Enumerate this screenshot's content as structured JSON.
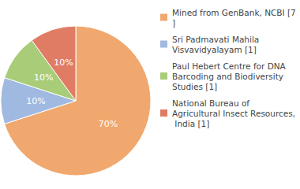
{
  "chart_data": {
    "type": "pie",
    "categories": [
      "Mined from GenBank, NCBI [7]",
      "Sri Padmavati Mahila Visvavidyalayam [1]",
      "Paul Hebert Centre for DNA Barcoding and Biodiversity Studies [1]",
      "National Bureau of Agricultural Insect Resources, India [1]"
    ],
    "values": [
      70,
      10,
      10,
      10
    ],
    "value_labels": [
      "70%",
      "10%",
      "10%",
      "10%"
    ],
    "colors": [
      "#f0a86e",
      "#a0b9e0",
      "#a8cc78",
      "#e07c64"
    ],
    "data_labels": true,
    "legend": "right"
  }
}
